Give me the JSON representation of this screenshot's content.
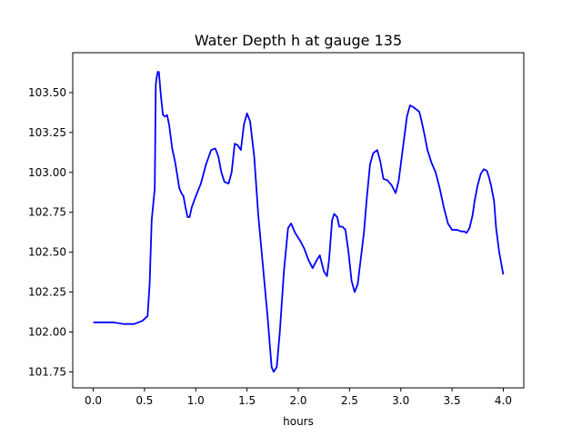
{
  "chart_data": {
    "type": "line",
    "title": "Water Depth h at gauge 135",
    "xlabel": "hours",
    "ylabel": "",
    "xlim": [
      -0.2,
      4.2
    ],
    "ylim": [
      101.65,
      103.75
    ],
    "xticks": [
      0.0,
      0.5,
      1.0,
      1.5,
      2.0,
      2.5,
      3.0,
      3.5,
      4.0
    ],
    "xtick_labels": [
      "0.0",
      "0.5",
      "1.0",
      "1.5",
      "2.0",
      "2.5",
      "3.0",
      "3.5",
      "4.0"
    ],
    "yticks": [
      101.75,
      102.0,
      102.25,
      102.5,
      102.75,
      103.0,
      103.25,
      103.5
    ],
    "ytick_labels": [
      "101.75",
      "102.00",
      "102.25",
      "102.50",
      "102.75",
      "103.00",
      "103.25",
      "103.50"
    ],
    "grid": false,
    "series": [
      {
        "color": "#0000ff",
        "x": [
          0.0,
          0.1,
          0.2,
          0.3,
          0.4,
          0.48,
          0.53,
          0.55,
          0.57,
          0.6,
          0.61,
          0.62,
          0.63,
          0.64,
          0.66,
          0.68,
          0.7,
          0.72,
          0.74,
          0.77,
          0.8,
          0.84,
          0.86,
          0.88,
          0.9,
          0.92,
          0.94,
          0.96,
          1.0,
          1.05,
          1.1,
          1.15,
          1.19,
          1.22,
          1.25,
          1.28,
          1.32,
          1.35,
          1.38,
          1.41,
          1.44,
          1.47,
          1.5,
          1.53,
          1.57,
          1.61,
          1.65,
          1.7,
          1.74,
          1.76,
          1.79,
          1.82,
          1.86,
          1.9,
          1.93,
          1.97,
          2.02,
          2.06,
          2.1,
          2.14,
          2.18,
          2.21,
          2.25,
          2.28,
          2.3,
          2.33,
          2.35,
          2.38,
          2.4,
          2.43,
          2.46,
          2.49,
          2.52,
          2.55,
          2.58,
          2.61,
          2.64,
          2.67,
          2.7,
          2.73,
          2.77,
          2.8,
          2.83,
          2.87,
          2.91,
          2.95,
          2.98,
          3.0,
          3.03,
          3.06,
          3.09,
          3.12,
          3.14,
          3.18,
          3.2,
          3.23,
          3.26,
          3.3,
          3.34,
          3.38,
          3.42,
          3.46,
          3.5,
          3.55,
          3.59,
          3.62,
          3.64,
          3.67,
          3.7,
          3.72,
          3.75,
          3.78,
          3.81,
          3.84,
          3.86,
          3.88,
          3.91,
          3.93,
          3.96,
          4.0
        ],
        "y": [
          102.06,
          102.06,
          102.06,
          102.05,
          102.05,
          102.07,
          102.1,
          102.3,
          102.7,
          102.9,
          103.55,
          103.6,
          103.63,
          103.63,
          103.48,
          103.36,
          103.35,
          103.36,
          103.3,
          103.15,
          103.06,
          102.9,
          102.87,
          102.85,
          102.78,
          102.72,
          102.72,
          102.78,
          102.85,
          102.93,
          103.05,
          103.14,
          103.15,
          103.1,
          103.0,
          102.94,
          102.93,
          103.0,
          103.18,
          103.17,
          103.14,
          103.3,
          103.37,
          103.32,
          103.1,
          102.73,
          102.45,
          102.1,
          101.78,
          101.75,
          101.78,
          102.0,
          102.38,
          102.65,
          102.68,
          102.62,
          102.57,
          102.52,
          102.45,
          102.4,
          102.45,
          102.48,
          102.38,
          102.35,
          102.45,
          102.7,
          102.74,
          102.72,
          102.66,
          102.66,
          102.64,
          102.5,
          102.32,
          102.25,
          102.3,
          102.46,
          102.62,
          102.85,
          103.05,
          103.12,
          103.14,
          103.07,
          102.96,
          102.95,
          102.92,
          102.87,
          102.95,
          103.05,
          103.2,
          103.35,
          103.42,
          103.41,
          103.4,
          103.38,
          103.33,
          103.24,
          103.14,
          103.06,
          103.0,
          102.9,
          102.78,
          102.68,
          102.64,
          102.64,
          102.63,
          102.63,
          102.62,
          102.65,
          102.73,
          102.82,
          102.92,
          102.99,
          103.02,
          103.01,
          102.97,
          102.92,
          102.82,
          102.65,
          102.5,
          102.36
        ]
      }
    ]
  }
}
